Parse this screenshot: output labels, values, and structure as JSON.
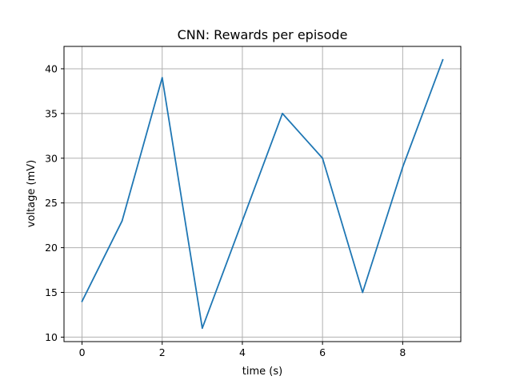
{
  "chart_data": {
    "type": "line",
    "title": "CNN: Rewards per episode",
    "xlabel": "time (s)",
    "ylabel": "voltage (mV)",
    "xlim": [
      -0.45,
      9.45
    ],
    "ylim": [
      9.5,
      42.5
    ],
    "xticks": [
      0,
      2,
      4,
      6,
      8
    ],
    "yticks": [
      10,
      15,
      20,
      25,
      30,
      35,
      40
    ],
    "grid": true,
    "series": [
      {
        "color": "#1f77b4",
        "x": [
          0,
          1,
          2,
          3,
          4,
          5,
          6,
          7,
          8,
          9
        ],
        "y": [
          14,
          23,
          39,
          11,
          23,
          35,
          30,
          15,
          29,
          41
        ]
      }
    ]
  }
}
